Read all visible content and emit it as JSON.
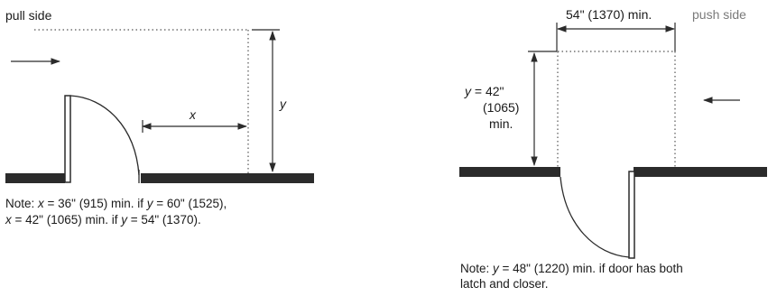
{
  "left_diagram": {
    "side_label": "pull side",
    "x_label": "x",
    "y_label": "y",
    "note": {
      "line1": [
        "Note: ",
        "x",
        " = 36\" (915) min. if ",
        "y",
        " = 60\" (1525),"
      ],
      "line2": [
        "x",
        " = 42\" (1065) min. if ",
        "y",
        " = 54\" (1370)."
      ]
    }
  },
  "right_diagram": {
    "side_label": "push side",
    "width_label": "54\" (1370) min.",
    "y_label": {
      "line1_var": "y",
      "line1_rest": " = 42\"",
      "line2": "(1065)",
      "line3": "min."
    },
    "note": {
      "line1_prefix": "Note: ",
      "line1_var": "y",
      "line1_rest": " = 48\" (1220) min. if door has both",
      "line2": "latch and closer."
    }
  }
}
